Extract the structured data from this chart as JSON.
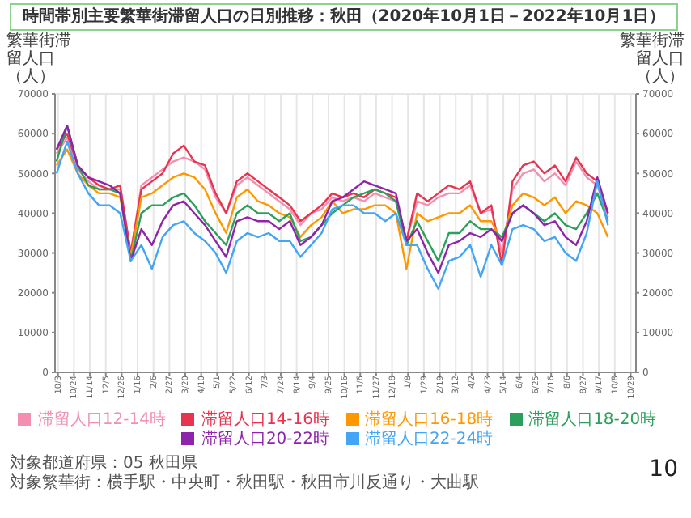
{
  "chart_data": {
    "type": "line",
    "title": "時間帯別主要繁華街滞留人口の日別推移：秋田（2020年10月1日－2022年10月1日）",
    "ylabel": "繁華街滞留人口（人）",
    "y2label": "繁華街滞留人口（人）",
    "x": [
      "2020-10-01",
      "2020-10-15",
      "2020-10-29",
      "2020-11-12",
      "2020-11-26",
      "2020-12-10",
      "2020-12-24",
      "2021-01-07",
      "2021-01-21",
      "2021-02-04",
      "2021-02-18",
      "2021-03-04",
      "2021-03-18",
      "2021-04-01",
      "2021-04-15",
      "2021-04-29",
      "2021-05-13",
      "2021-05-27",
      "2021-06-10",
      "2021-06-24",
      "2021-07-08",
      "2021-07-22",
      "2021-08-05",
      "2021-08-19",
      "2021-09-02",
      "2021-09-16",
      "2021-09-30",
      "2021-10-14",
      "2021-10-28",
      "2021-11-11",
      "2021-11-25",
      "2021-12-09",
      "2021-12-23",
      "2022-01-06",
      "2022-01-20",
      "2022-02-03",
      "2022-02-17",
      "2022-03-03",
      "2022-03-17",
      "2022-03-31",
      "2022-04-14",
      "2022-04-28",
      "2022-05-12",
      "2022-05-26",
      "2022-06-09",
      "2022-06-23",
      "2022-07-07",
      "2022-07-21",
      "2022-08-04",
      "2022-08-18",
      "2022-09-01",
      "2022-09-15",
      "2022-09-29"
    ],
    "series": [
      {
        "name": "滞留人口12-14時",
        "color": "#f48fb1",
        "values": [
          55000,
          59000,
          51000,
          48000,
          46000,
          46000,
          46000,
          30000,
          47000,
          49000,
          51000,
          53000,
          54000,
          53000,
          51000,
          44000,
          40000,
          47000,
          49000,
          47000,
          45000,
          43000,
          41000,
          37000,
          40000,
          41000,
          44000,
          43000,
          44000,
          43000,
          45000,
          44000,
          43000,
          33000,
          43000,
          42000,
          44000,
          45000,
          45000,
          47000,
          40000,
          41000,
          30000,
          46000,
          50000,
          51000,
          48000,
          50000,
          47000,
          53000,
          49000,
          47000,
          39000
        ]
      },
      {
        "name": "滞留人口14-16時",
        "color": "#e8344e",
        "values": [
          56000,
          60000,
          52000,
          49000,
          47000,
          46000,
          47000,
          30000,
          46000,
          48000,
          50000,
          55000,
          57000,
          53000,
          52000,
          45000,
          40000,
          48000,
          50000,
          48000,
          46000,
          44000,
          42000,
          38000,
          40000,
          42000,
          45000,
          44000,
          45000,
          44000,
          46000,
          45000,
          44000,
          33000,
          45000,
          43000,
          45000,
          47000,
          46000,
          48000,
          40000,
          42000,
          27000,
          48000,
          52000,
          53000,
          50000,
          52000,
          48000,
          54000,
          50000,
          48000,
          40000
        ]
      },
      {
        "name": "滞留人口16-18時",
        "color": "#ff9800",
        "values": [
          52000,
          56000,
          50000,
          47000,
          45000,
          45000,
          44000,
          29000,
          44000,
          45000,
          47000,
          49000,
          50000,
          49000,
          46000,
          40000,
          35000,
          44000,
          46000,
          43000,
          42000,
          40000,
          39000,
          34000,
          37000,
          39000,
          43000,
          40000,
          41000,
          41000,
          42000,
          42000,
          40000,
          26000,
          40000,
          38000,
          39000,
          40000,
          40000,
          42000,
          38000,
          38000,
          33000,
          42000,
          45000,
          44000,
          42000,
          44000,
          40000,
          43000,
          42000,
          40000,
          34000
        ]
      },
      {
        "name": "滞留人口18-20時",
        "color": "#2ca05a",
        "values": [
          53000,
          62000,
          52000,
          47000,
          46000,
          46000,
          45000,
          28000,
          40000,
          42000,
          42000,
          44000,
          45000,
          42000,
          38000,
          35000,
          32000,
          40000,
          42000,
          40000,
          40000,
          38000,
          40000,
          33000,
          34000,
          37000,
          40000,
          42000,
          44000,
          45000,
          46000,
          45000,
          43000,
          32000,
          38000,
          33000,
          28000,
          35000,
          35000,
          38000,
          36000,
          36000,
          34000,
          40000,
          42000,
          40000,
          38000,
          40000,
          37000,
          36000,
          40000,
          45000,
          38000
        ]
      },
      {
        "name": "滞留人口20-22時",
        "color": "#8e24aa",
        "values": [
          56000,
          62000,
          52000,
          49000,
          48000,
          47000,
          45000,
          28000,
          36000,
          32000,
          38000,
          42000,
          43000,
          40000,
          37000,
          33000,
          29000,
          38000,
          39000,
          38000,
          38000,
          36000,
          38000,
          32000,
          34000,
          37000,
          43000,
          44000,
          46000,
          48000,
          47000,
          46000,
          45000,
          33000,
          36000,
          30000,
          25000,
          32000,
          33000,
          35000,
          34000,
          36000,
          33000,
          40000,
          42000,
          40000,
          37000,
          38000,
          34000,
          32000,
          38000,
          49000,
          40000
        ]
      },
      {
        "name": "滞留人口22-24時",
        "color": "#42a5f5",
        "values": [
          50000,
          58000,
          50000,
          45000,
          42000,
          42000,
          40000,
          28000,
          32000,
          26000,
          34000,
          37000,
          38000,
          35000,
          33000,
          30000,
          25000,
          33000,
          35000,
          34000,
          35000,
          33000,
          33000,
          29000,
          32000,
          35000,
          41000,
          42000,
          42000,
          40000,
          40000,
          38000,
          40000,
          32000,
          32000,
          26000,
          21000,
          28000,
          29000,
          32000,
          24000,
          32000,
          27000,
          36000,
          37000,
          36000,
          33000,
          34000,
          30000,
          28000,
          35000,
          48000,
          37000
        ]
      }
    ],
    "xlim": [
      "2020-09-29",
      "2022-11-05"
    ],
    "xticks": [
      {
        "value": "2020-10-03",
        "label": "10/3"
      },
      {
        "value": "2020-10-24",
        "label": "10/24"
      },
      {
        "value": "2020-11-14",
        "label": "11/14"
      },
      {
        "value": "2020-12-05",
        "label": "12/5"
      },
      {
        "value": "2020-12-26",
        "label": "12/26"
      },
      {
        "value": "2021-01-16",
        "label": "1/16"
      },
      {
        "value": "2021-02-06",
        "label": "2/6"
      },
      {
        "value": "2021-02-27",
        "label": "2/27"
      },
      {
        "value": "2021-03-20",
        "label": "3/20"
      },
      {
        "value": "2021-04-10",
        "label": "4/10"
      },
      {
        "value": "2021-05-01",
        "label": "5/1"
      },
      {
        "value": "2021-05-22",
        "label": "5/22"
      },
      {
        "value": "2021-06-12",
        "label": "6/12"
      },
      {
        "value": "2021-07-03",
        "label": "7/3"
      },
      {
        "value": "2021-07-24",
        "label": "7/24"
      },
      {
        "value": "2021-08-14",
        "label": "8/14"
      },
      {
        "value": "2021-09-04",
        "label": "9/4"
      },
      {
        "value": "2021-09-25",
        "label": "9/25"
      },
      {
        "value": "2021-10-16",
        "label": "10/16"
      },
      {
        "value": "2021-11-06",
        "label": "11/6"
      },
      {
        "value": "2021-11-27",
        "label": "11/27"
      },
      {
        "value": "2021-12-18",
        "label": "12/18"
      },
      {
        "value": "2022-01-08",
        "label": "1/8"
      },
      {
        "value": "2022-01-29",
        "label": "1/29"
      },
      {
        "value": "2022-02-19",
        "label": "2/19"
      },
      {
        "value": "2022-03-12",
        "label": "3/12"
      },
      {
        "value": "2022-04-02",
        "label": "4/2"
      },
      {
        "value": "2022-04-23",
        "label": "4/23"
      },
      {
        "value": "2022-05-14",
        "label": "5/14"
      },
      {
        "value": "2022-06-04",
        "label": "6/4"
      },
      {
        "value": "2022-06-25",
        "label": "6/25"
      },
      {
        "value": "2022-07-16",
        "label": "7/16"
      },
      {
        "value": "2022-08-06",
        "label": "8/6"
      },
      {
        "value": "2022-08-27",
        "label": "8/27"
      },
      {
        "value": "2022-09-17",
        "label": "9/17"
      },
      {
        "value": "2022-10-08",
        "label": "10/8"
      },
      {
        "value": "2022-10-29",
        "label": "10/29"
      }
    ],
    "ylim": [
      0,
      70000
    ],
    "yticks": [
      0,
      10000,
      20000,
      30000,
      40000,
      50000,
      60000,
      70000
    ],
    "y2lim": [
      0,
      70000
    ],
    "y2ticks": [
      0,
      10000,
      20000,
      30000,
      40000,
      50000,
      60000,
      70000
    ],
    "grid": true,
    "legend": "bottom",
    "marker": "none",
    "line_style": "solid",
    "annotations": [
      "対象都道府県：05 秋田県",
      "対象繁華街：横手駅・中央町・秋田駅・秋田市川反通り・大曲駅",
      "10"
    ]
  }
}
